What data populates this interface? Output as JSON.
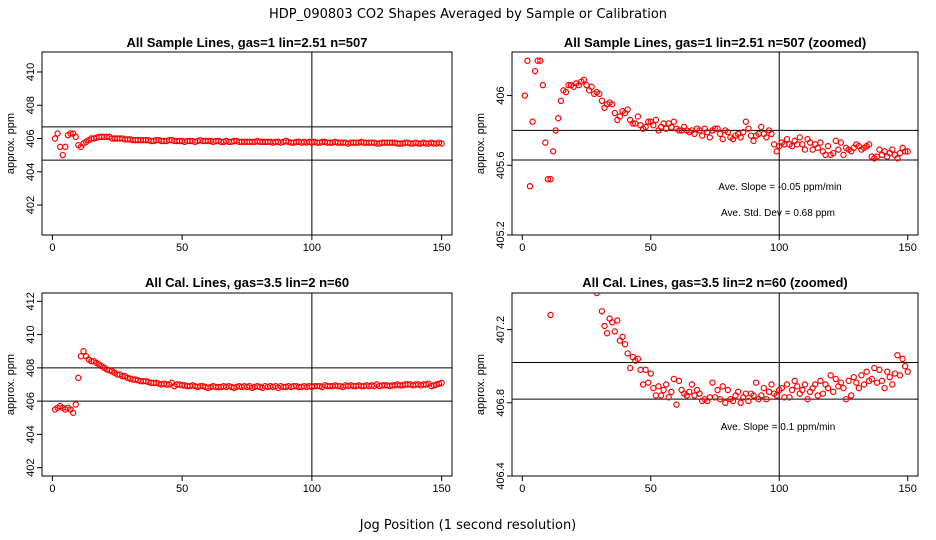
{
  "page": {
    "title": "HDP_090803  CO2 Shapes Averaged by Sample or Calibration",
    "xlabel": "Jog Position (1 second resolution)"
  },
  "colors": {
    "points": "#ff0000",
    "axes": "#000000"
  },
  "chart_data": [
    {
      "type": "scatter",
      "title": "All Sample Lines, gas=1 lin=2.51 n=507",
      "ylabel": "approx. ppm",
      "xlim": [
        -4,
        154
      ],
      "ylim": [
        400.2,
        411.2
      ],
      "xticks": [
        0,
        50,
        100,
        150
      ],
      "yticks": [
        402,
        404,
        406,
        408,
        410
      ],
      "vline": 100,
      "hlines": [
        406.7,
        404.7
      ],
      "annotations": [],
      "x": [
        1,
        2,
        3,
        4,
        5,
        6,
        7,
        8,
        9,
        10,
        11,
        12,
        13,
        14,
        15,
        16,
        17,
        18,
        19,
        20,
        21,
        22,
        23,
        24,
        25,
        26,
        27,
        28,
        29,
        30,
        31,
        32,
        33,
        34,
        35,
        36,
        37,
        38,
        39,
        40,
        41,
        42,
        43,
        44,
        45,
        46,
        47,
        48,
        49,
        50,
        51,
        52,
        53,
        54,
        55,
        56,
        57,
        58,
        59,
        60,
        61,
        62,
        63,
        64,
        65,
        66,
        67,
        68,
        69,
        70,
        71,
        72,
        73,
        74,
        75,
        76,
        77,
        78,
        79,
        80,
        81,
        82,
        83,
        84,
        85,
        86,
        87,
        88,
        89,
        90,
        91,
        92,
        93,
        94,
        95,
        96,
        97,
        98,
        99,
        100,
        101,
        102,
        103,
        104,
        105,
        106,
        107,
        108,
        109,
        110,
        111,
        112,
        113,
        114,
        115,
        116,
        117,
        118,
        119,
        120,
        121,
        122,
        123,
        124,
        125,
        126,
        127,
        128,
        129,
        130,
        131,
        132,
        133,
        134,
        135,
        136,
        137,
        138,
        139,
        140,
        141,
        142,
        143,
        144,
        145,
        146,
        147,
        148,
        149,
        150
      ],
      "y": [
        406.0,
        406.3,
        405.5,
        405.0,
        405.5,
        406.2,
        406.3,
        406.3,
        406.1,
        405.6,
        405.5,
        405.7,
        405.8,
        405.9,
        406.0,
        406.0,
        406.05,
        406.1,
        406.1,
        406.1,
        406.1,
        406.1,
        406.0,
        406.0,
        406.0,
        406.0,
        406.0,
        405.95,
        405.95,
        405.95,
        405.9,
        405.9,
        405.9,
        405.9,
        405.9,
        405.9,
        405.9,
        405.85,
        405.85,
        405.9,
        405.9,
        405.85,
        405.85,
        405.85,
        405.9,
        405.9,
        405.85,
        405.85,
        405.85,
        405.85,
        405.8,
        405.85,
        405.85,
        405.85,
        405.8,
        405.85,
        405.9,
        405.85,
        405.85,
        405.85,
        405.85,
        405.8,
        405.85,
        405.85,
        405.8,
        405.8,
        405.85,
        405.8,
        405.8,
        405.85,
        405.85,
        405.8,
        405.8,
        405.8,
        405.8,
        405.8,
        405.8,
        405.8,
        405.85,
        405.8,
        405.8,
        405.8,
        405.8,
        405.8,
        405.75,
        405.8,
        405.8,
        405.75,
        405.8,
        405.85,
        405.8,
        405.75,
        405.75,
        405.8,
        405.8,
        405.75,
        405.8,
        405.75,
        405.8,
        405.75,
        405.8,
        405.75,
        405.75,
        405.8,
        405.8,
        405.75,
        405.75,
        405.75,
        405.8,
        405.75,
        405.75,
        405.75,
        405.75,
        405.7,
        405.75,
        405.75,
        405.75,
        405.75,
        405.8,
        405.75,
        405.75,
        405.75,
        405.75,
        405.75,
        405.7,
        405.7,
        405.75,
        405.75,
        405.75,
        405.75,
        405.75,
        405.75,
        405.7,
        405.7,
        405.7,
        405.75,
        405.75,
        405.7,
        405.7,
        405.75,
        405.7,
        405.7,
        405.75,
        405.7,
        405.7,
        405.75,
        405.7,
        405.7,
        405.75,
        405.7
      ]
    },
    {
      "type": "scatter",
      "title": "All Sample Lines, gas=1 lin=2.51 n=507 (zoomed)",
      "ylabel": "approx. ppm",
      "xlim": [
        -4,
        154
      ],
      "ylim": [
        405.2,
        406.25
      ],
      "xticks": [
        0,
        50,
        100,
        150
      ],
      "yticks": [
        405.2,
        405.6,
        406.0
      ],
      "vline": 100,
      "hlines": [
        405.8,
        405.63
      ],
      "annotations": [
        "Ave. Slope =  -0.05  ppm/min",
        "Ave. Std. Dev =  0.68  ppm"
      ],
      "x": [
        1,
        2,
        3,
        4,
        5,
        6,
        7,
        8,
        9,
        10,
        11,
        12,
        13,
        14,
        15,
        16,
        17,
        18,
        19,
        20,
        21,
        22,
        23,
        24,
        25,
        26,
        27,
        28,
        29,
        30,
        31,
        32,
        33,
        34,
        35,
        36,
        37,
        38,
        39,
        40,
        41,
        42,
        43,
        44,
        45,
        46,
        47,
        48,
        49,
        50,
        51,
        52,
        53,
        54,
        55,
        56,
        57,
        58,
        59,
        60,
        61,
        62,
        63,
        64,
        65,
        66,
        67,
        68,
        69,
        70,
        71,
        72,
        73,
        74,
        75,
        76,
        77,
        78,
        79,
        80,
        81,
        82,
        83,
        84,
        85,
        86,
        87,
        88,
        89,
        90,
        91,
        92,
        93,
        94,
        95,
        96,
        97,
        98,
        99,
        100,
        101,
        102,
        103,
        104,
        105,
        106,
        107,
        108,
        109,
        110,
        111,
        112,
        113,
        114,
        115,
        116,
        117,
        118,
        119,
        120,
        121,
        122,
        123,
        124,
        125,
        126,
        127,
        128,
        129,
        130,
        131,
        132,
        133,
        134,
        135,
        136,
        137,
        138,
        139,
        140,
        141,
        142,
        143,
        144,
        145,
        146,
        147,
        148,
        149,
        150
      ],
      "y": [
        406.0,
        406.2,
        405.48,
        405.85,
        406.14,
        406.2,
        406.2,
        406.06,
        405.73,
        405.52,
        405.52,
        405.68,
        405.8,
        405.87,
        405.97,
        406.03,
        406.02,
        406.06,
        406.06,
        406.05,
        406.07,
        406.06,
        406.08,
        406.09,
        406.06,
        406.03,
        406.05,
        406.01,
        406.02,
        406.01,
        405.97,
        405.93,
        405.95,
        405.96,
        405.95,
        405.9,
        405.86,
        405.88,
        405.91,
        405.9,
        405.92,
        405.86,
        405.84,
        405.84,
        405.88,
        405.83,
        405.81,
        405.82,
        405.85,
        405.85,
        405.83,
        405.86,
        405.8,
        405.82,
        405.84,
        405.81,
        405.84,
        405.82,
        405.85,
        405.81,
        405.8,
        405.8,
        405.82,
        405.8,
        405.79,
        405.8,
        405.78,
        405.81,
        405.8,
        405.77,
        405.81,
        405.79,
        405.76,
        405.8,
        405.81,
        405.81,
        405.78,
        405.75,
        405.8,
        405.79,
        405.76,
        405.75,
        405.77,
        405.78,
        405.76,
        405.79,
        405.85,
        405.81,
        405.77,
        405.74,
        405.77,
        405.78,
        405.82,
        405.78,
        405.76,
        405.8,
        405.78,
        405.72,
        405.68,
        405.71,
        405.73,
        405.72,
        405.75,
        405.72,
        405.71,
        405.74,
        405.72,
        405.76,
        405.72,
        405.69,
        405.75,
        405.73,
        405.69,
        405.72,
        405.7,
        405.73,
        405.68,
        405.66,
        405.71,
        405.66,
        405.67,
        405.74,
        405.69,
        405.73,
        405.66,
        405.7,
        405.69,
        405.68,
        405.7,
        405.72,
        405.71,
        405.69,
        405.7,
        405.71,
        405.72,
        405.65,
        405.64,
        405.65,
        405.69,
        405.66,
        405.68,
        405.65,
        405.67,
        405.69,
        405.66,
        405.64,
        405.67,
        405.7,
        405.68,
        405.68
      ]
    },
    {
      "type": "scatter",
      "title": "All Cal. Lines, gas=3.5 lin=2 n=60",
      "ylabel": "approx. ppm",
      "xlim": [
        -4,
        154
      ],
      "ylim": [
        401.5,
        412.5
      ],
      "xticks": [
        0,
        50,
        100,
        150
      ],
      "yticks": [
        402,
        404,
        406,
        408,
        410,
        412
      ],
      "vline": 100,
      "hlines": [
        408.0,
        406.0
      ],
      "annotations": [],
      "x": [
        1,
        2,
        3,
        4,
        5,
        6,
        7,
        8,
        9,
        10,
        11,
        12,
        13,
        14,
        15,
        16,
        17,
        18,
        19,
        20,
        21,
        22,
        23,
        24,
        25,
        26,
        27,
        28,
        29,
        30,
        31,
        32,
        33,
        34,
        35,
        36,
        37,
        38,
        39,
        40,
        41,
        42,
        43,
        44,
        45,
        46,
        47,
        48,
        49,
        50,
        51,
        52,
        53,
        54,
        55,
        56,
        57,
        58,
        59,
        60,
        61,
        62,
        63,
        64,
        65,
        66,
        67,
        68,
        69,
        70,
        71,
        72,
        73,
        74,
        75,
        76,
        77,
        78,
        79,
        80,
        81,
        82,
        83,
        84,
        85,
        86,
        87,
        88,
        89,
        90,
        91,
        92,
        93,
        94,
        95,
        96,
        97,
        98,
        99,
        100,
        101,
        102,
        103,
        104,
        105,
        106,
        107,
        108,
        109,
        110,
        111,
        112,
        113,
        114,
        115,
        116,
        117,
        118,
        119,
        120,
        121,
        122,
        123,
        124,
        125,
        126,
        127,
        128,
        129,
        130,
        131,
        132,
        133,
        134,
        135,
        136,
        137,
        138,
        139,
        140,
        141,
        142,
        143,
        144,
        145,
        146,
        147,
        148,
        149,
        150
      ],
      "y": [
        405.5,
        405.6,
        405.7,
        405.6,
        405.5,
        405.6,
        405.5,
        405.3,
        405.8,
        407.4,
        408.7,
        409.0,
        408.7,
        408.5,
        408.4,
        408.4,
        408.3,
        408.2,
        408.1,
        408.0,
        407.9,
        407.85,
        407.8,
        407.7,
        407.6,
        407.6,
        407.5,
        407.5,
        407.4,
        407.35,
        407.3,
        407.3,
        407.25,
        407.2,
        407.2,
        407.2,
        407.15,
        407.1,
        407.1,
        407.1,
        407.05,
        407.0,
        407.05,
        407.0,
        407.0,
        407.1,
        406.9,
        407.0,
        407.0,
        406.95,
        406.95,
        406.9,
        406.9,
        406.95,
        406.9,
        406.85,
        406.9,
        406.9,
        406.85,
        406.8,
        406.85,
        406.9,
        406.85,
        406.85,
        406.85,
        406.9,
        406.85,
        406.9,
        406.85,
        406.8,
        406.85,
        406.9,
        406.85,
        406.9,
        406.85,
        406.9,
        406.8,
        406.85,
        406.9,
        406.85,
        406.8,
        406.9,
        406.85,
        406.9,
        406.85,
        406.9,
        406.8,
        406.9,
        406.85,
        406.85,
        406.9,
        406.85,
        406.9,
        406.9,
        406.85,
        406.85,
        406.9,
        406.85,
        406.9,
        406.85,
        406.9,
        406.9,
        406.9,
        406.85,
        406.95,
        406.9,
        406.9,
        406.9,
        406.95,
        406.9,
        406.9,
        406.85,
        406.95,
        406.9,
        406.95,
        406.9,
        406.9,
        406.95,
        406.9,
        406.9,
        406.95,
        406.9,
        406.95,
        406.9,
        407.0,
        406.9,
        406.95,
        406.95,
        406.95,
        406.9,
        406.95,
        406.95,
        407.0,
        406.95,
        406.95,
        407.0,
        407.0,
        407.0,
        406.95,
        407.0,
        407.0,
        406.95,
        407.0,
        407.0,
        407.05,
        406.9,
        406.95,
        407.0,
        407.05,
        407.1
      ]
    },
    {
      "type": "scatter",
      "title": "All Cal. Lines, gas=3.5 lin=2 n=60 (zoomed)",
      "ylabel": "approx. ppm",
      "xlim": [
        -4,
        154
      ],
      "ylim": [
        406.4,
        407.4
      ],
      "xticks": [
        0,
        50,
        100,
        150
      ],
      "yticks": [
        406.4,
        406.8,
        407.2
      ],
      "vline": 100,
      "hlines": [
        407.02,
        406.82
      ],
      "annotations": [
        "Ave. Slope =  0.1  ppm/min"
      ],
      "x": [
        11,
        29,
        31,
        32,
        33,
        34,
        35,
        36,
        37,
        38,
        39,
        40,
        41,
        42,
        43,
        44,
        45,
        46,
        47,
        48,
        49,
        50,
        51,
        52,
        53,
        54,
        55,
        56,
        57,
        58,
        59,
        60,
        61,
        62,
        63,
        64,
        65,
        66,
        67,
        68,
        69,
        70,
        71,
        72,
        73,
        74,
        75,
        76,
        77,
        78,
        79,
        80,
        81,
        82,
        83,
        84,
        85,
        86,
        87,
        88,
        89,
        90,
        91,
        92,
        93,
        94,
        95,
        96,
        97,
        98,
        99,
        100,
        101,
        102,
        103,
        104,
        105,
        106,
        107,
        108,
        109,
        110,
        111,
        112,
        113,
        114,
        115,
        116,
        117,
        118,
        119,
        120,
        121,
        122,
        123,
        124,
        125,
        126,
        127,
        128,
        129,
        130,
        131,
        132,
        133,
        134,
        135,
        136,
        137,
        138,
        139,
        140,
        141,
        142,
        143,
        144,
        145,
        146,
        147,
        148,
        149,
        150
      ],
      "y": [
        407.28,
        407.4,
        407.3,
        407.22,
        407.18,
        407.26,
        407.24,
        407.19,
        407.25,
        407.14,
        407.16,
        407.12,
        407.07,
        406.99,
        407.05,
        407.03,
        407.04,
        406.98,
        406.9,
        406.98,
        406.91,
        406.96,
        406.88,
        406.84,
        406.89,
        406.84,
        406.87,
        406.9,
        406.83,
        406.86,
        406.93,
        406.79,
        406.92,
        406.87,
        406.85,
        406.84,
        406.86,
        406.9,
        406.84,
        406.87,
        406.85,
        406.81,
        406.82,
        406.81,
        406.83,
        406.91,
        406.83,
        406.87,
        406.82,
        406.89,
        406.8,
        406.87,
        406.82,
        406.81,
        406.84,
        406.86,
        406.8,
        406.83,
        406.85,
        406.81,
        406.85,
        406.84,
        406.91,
        406.82,
        406.84,
        406.88,
        406.82,
        406.86,
        406.9,
        406.85,
        406.84,
        406.87,
        406.88,
        406.83,
        406.9,
        406.83,
        406.87,
        406.92,
        406.89,
        406.85,
        406.87,
        406.9,
        406.82,
        406.86,
        406.88,
        406.9,
        406.84,
        406.92,
        406.85,
        406.9,
        406.88,
        406.95,
        406.86,
        406.93,
        406.89,
        406.91,
        406.88,
        406.82,
        406.92,
        406.84,
        406.94,
        406.91,
        406.88,
        406.95,
        406.9,
        406.97,
        406.92,
        406.93,
        406.99,
        406.91,
        406.98,
        406.92,
        406.88,
        406.97,
        406.94,
        406.9,
        406.96,
        407.06,
        406.95,
        407.04,
        407.0,
        406.97
      ]
    }
  ]
}
